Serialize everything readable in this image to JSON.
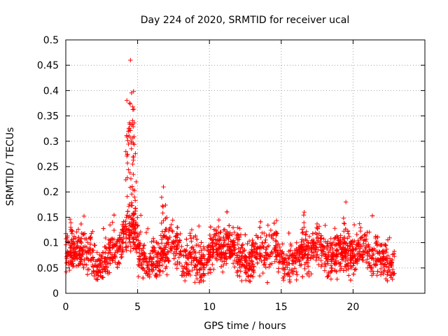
{
  "chart_data": {
    "type": "scatter",
    "title": "Day 224 of 2020, SRMTID for receiver ucal",
    "xlabel": "GPS time / hours",
    "ylabel": "SRMTID / TECUs",
    "xlim": [
      0,
      25
    ],
    "ylim": [
      0,
      0.5
    ],
    "xticks": [
      0,
      5,
      10,
      15,
      20
    ],
    "yticks": [
      0,
      0.05,
      0.1,
      0.15,
      0.2,
      0.25,
      0.3,
      0.35,
      0.4,
      0.45,
      0.5
    ],
    "xtick_labels": [
      "0",
      "5",
      "10",
      "15",
      "20"
    ],
    "ytick_labels": [
      "0",
      "0.05",
      "0.1",
      "0.15",
      "0.2",
      "0.25",
      "0.3",
      "0.35",
      "0.4",
      "0.45",
      "0.5"
    ],
    "grid": true,
    "marker": "+",
    "series_color": "#ff0000",
    "x_range_of_data": [
      0,
      22.9
    ],
    "approx_point_count": 2500,
    "typical_level": 0.08,
    "typical_spread": [
      0.03,
      0.14
    ],
    "peaks": [
      {
        "x": 4.5,
        "y": 0.46
      },
      {
        "x": 4.9,
        "y": 0.22
      },
      {
        "x": 6.8,
        "y": 0.21
      },
      {
        "x": 16.6,
        "y": 0.16
      },
      {
        "x": 19.5,
        "y": 0.18
      }
    ]
  }
}
